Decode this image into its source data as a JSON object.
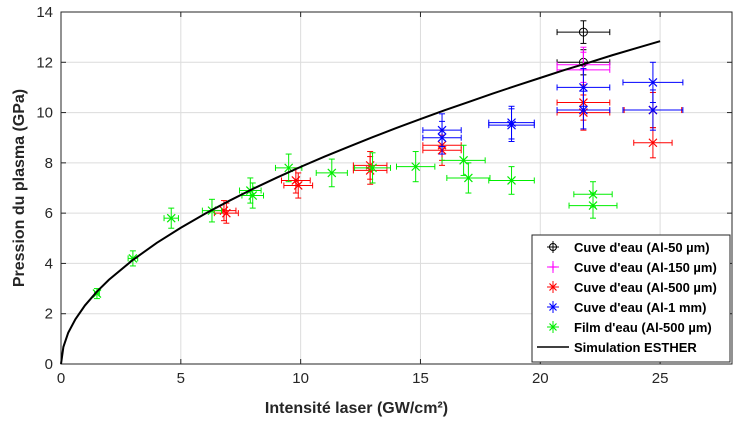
{
  "chart_data": {
    "type": "scatter",
    "xlabel": "Intensité laser (GW/cm²)",
    "ylabel": "Pression du plasma (GPa)",
    "xlim": [
      0,
      28
    ],
    "ylim": [
      0,
      14
    ],
    "xticks": [
      0,
      5,
      10,
      15,
      20,
      25
    ],
    "yticks": [
      0,
      2,
      4,
      6,
      8,
      10,
      12,
      14
    ],
    "grid": true,
    "legend_position": "bottom-right",
    "series": [
      {
        "name": "Cuve d'eau (Al-50 µm)",
        "color": "#000000",
        "marker": "circle",
        "points": [
          {
            "x": 21.8,
            "y": 13.2,
            "xerr": 1.1,
            "yerr": 0.45
          },
          {
            "x": 21.8,
            "y": 12.0,
            "xerr": 1.1,
            "yerr": 0.5
          }
        ]
      },
      {
        "name": "Cuve d'eau (Al-150 µm)",
        "color": "#ff00ff",
        "marker": "plus",
        "points": [
          {
            "x": 21.8,
            "y": 11.9,
            "xerr": 1.1,
            "yerr": 0.7
          },
          {
            "x": 21.8,
            "y": 11.7,
            "xerr": 1.1,
            "yerr": 0.7
          }
        ]
      },
      {
        "name": "Cuve d'eau (Al-500 µm)",
        "color": "#ff0000",
        "marker": "x",
        "points": [
          {
            "x": 6.8,
            "y": 6.1,
            "xerr": 0.5,
            "yerr": 0.4
          },
          {
            "x": 6.9,
            "y": 6.0,
            "xerr": 0.5,
            "yerr": 0.4
          },
          {
            "x": 9.8,
            "y": 7.3,
            "xerr": 0.6,
            "yerr": 0.5
          },
          {
            "x": 9.9,
            "y": 7.1,
            "xerr": 0.6,
            "yerr": 0.5
          },
          {
            "x": 12.9,
            "y": 7.9,
            "xerr": 0.7,
            "yerr": 0.55
          },
          {
            "x": 12.9,
            "y": 7.7,
            "xerr": 0.7,
            "yerr": 0.55
          },
          {
            "x": 15.9,
            "y": 8.7,
            "xerr": 0.8,
            "yerr": 0.6
          },
          {
            "x": 15.9,
            "y": 8.5,
            "xerr": 0.8,
            "yerr": 0.6
          },
          {
            "x": 21.8,
            "y": 10.4,
            "xerr": 1.1,
            "yerr": 0.7
          },
          {
            "x": 21.8,
            "y": 10.0,
            "xerr": 1.1,
            "yerr": 0.7
          },
          {
            "x": 24.7,
            "y": 10.1,
            "xerr": 1.2,
            "yerr": 0.7
          },
          {
            "x": 24.7,
            "y": 8.8,
            "xerr": 0.8,
            "yerr": 0.6
          }
        ]
      },
      {
        "name": "Cuve d'eau (Al-1 mm)",
        "color": "#0000ff",
        "marker": "x",
        "points": [
          {
            "x": 15.9,
            "y": 9.3,
            "xerr": 0.8,
            "yerr": 0.65
          },
          {
            "x": 15.9,
            "y": 9.0,
            "xerr": 0.8,
            "yerr": 0.65
          },
          {
            "x": 18.8,
            "y": 9.6,
            "xerr": 0.95,
            "yerr": 0.65
          },
          {
            "x": 18.8,
            "y": 9.5,
            "xerr": 0.95,
            "yerr": 0.65
          },
          {
            "x": 21.8,
            "y": 11.0,
            "xerr": 1.1,
            "yerr": 0.75
          },
          {
            "x": 21.8,
            "y": 10.1,
            "xerr": 1.1,
            "yerr": 0.75
          },
          {
            "x": 24.7,
            "y": 11.2,
            "xerr": 1.25,
            "yerr": 0.8
          },
          {
            "x": 24.7,
            "y": 10.1,
            "xerr": 1.25,
            "yerr": 0.8
          }
        ]
      },
      {
        "name": "Film d'eau (Al-500 µm)",
        "color": "#00ee00",
        "marker": "x",
        "points": [
          {
            "x": 1.5,
            "y": 2.8,
            "xerr": 0.1,
            "yerr": 0.2
          },
          {
            "x": 3.0,
            "y": 4.2,
            "xerr": 0.2,
            "yerr": 0.3
          },
          {
            "x": 4.6,
            "y": 5.8,
            "xerr": 0.3,
            "yerr": 0.4
          },
          {
            "x": 6.3,
            "y": 6.1,
            "xerr": 0.4,
            "yerr": 0.45
          },
          {
            "x": 7.9,
            "y": 6.9,
            "xerr": 0.45,
            "yerr": 0.5
          },
          {
            "x": 8.0,
            "y": 6.7,
            "xerr": 0.45,
            "yerr": 0.5
          },
          {
            "x": 9.5,
            "y": 7.8,
            "xerr": 0.55,
            "yerr": 0.55
          },
          {
            "x": 11.3,
            "y": 7.6,
            "xerr": 0.65,
            "yerr": 0.55
          },
          {
            "x": 13.0,
            "y": 7.8,
            "xerr": 0.75,
            "yerr": 0.6
          },
          {
            "x": 14.8,
            "y": 7.85,
            "xerr": 0.8,
            "yerr": 0.6
          },
          {
            "x": 16.8,
            "y": 8.1,
            "xerr": 0.9,
            "yerr": 0.6
          },
          {
            "x": 17.0,
            "y": 7.4,
            "xerr": 0.9,
            "yerr": 0.6
          },
          {
            "x": 18.8,
            "y": 7.3,
            "xerr": 0.95,
            "yerr": 0.55
          },
          {
            "x": 22.2,
            "y": 6.75,
            "xerr": 0.8,
            "yerr": 0.5
          },
          {
            "x": 22.2,
            "y": 6.3,
            "xerr": 1.0,
            "yerr": 0.5
          }
        ]
      },
      {
        "name": "Simulation ESTHER",
        "color": "#000000",
        "type": "line",
        "x": [
          0,
          0.1,
          0.3,
          0.6,
          1,
          1.5,
          2,
          3,
          4,
          5,
          6,
          7,
          8,
          9,
          10,
          11,
          12,
          13,
          14,
          15,
          16,
          17,
          18,
          19,
          20,
          21,
          22,
          23,
          24,
          25
        ],
        "y": [
          0,
          0.68,
          1.24,
          1.78,
          2.33,
          2.88,
          3.35,
          4.14,
          4.82,
          5.42,
          5.97,
          6.48,
          6.96,
          7.41,
          7.84,
          8.25,
          8.64,
          9.02,
          9.39,
          9.74,
          10.09,
          10.42,
          10.75,
          11.07,
          11.38,
          11.69,
          11.98,
          12.28,
          12.56,
          12.84
        ]
      }
    ]
  }
}
